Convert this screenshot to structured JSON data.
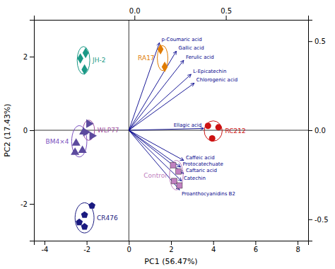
{
  "chart_data": {
    "type": "scatter",
    "xlabel": "PC1 (56.47%)",
    "ylabel": "PC2 (17.43%)",
    "xlim": [
      -4.5,
      8.5
    ],
    "ylim": [
      -3.0,
      3.0
    ],
    "xticks": [
      -4,
      -2,
      0,
      2,
      4,
      6,
      8
    ],
    "yticks": [
      -2,
      0,
      2
    ],
    "x2lim": [
      -0.55,
      0.95
    ],
    "x2ticks": [
      {
        "value": 0.0,
        "label": "0.0"
      },
      0.5
    ],
    "y2lim": [
      -0.62,
      0.62
    ],
    "y2ticks": [
      -0.5,
      {
        "value": 0.0,
        "label": "0.0"
      },
      0.5
    ],
    "series": [
      {
        "name": "JH-2",
        "marker": "diamond",
        "color": "#1a9986",
        "x": [
          -2.05,
          -2.3,
          -2.1
        ],
        "values": [
          2.1,
          1.95,
          1.65
        ],
        "ellipse": {
          "x": -2.15,
          "y": 1.9,
          "width": 0.6,
          "height": 0.75,
          "color": "#1a9986"
        }
      },
      {
        "name": "RA17",
        "marker": "diamond",
        "color": "#e07b00",
        "x": [
          1.5,
          1.7
        ],
        "values": [
          2.2,
          1.72
        ],
        "ellipse": {
          "x": 1.6,
          "y": 1.96,
          "width": 0.5,
          "height": 0.68,
          "color": "#e07b00"
        }
      },
      {
        "name": "WLP77",
        "marker": "triangle-right",
        "color": "#5c4a9e",
        "x": [
          -1.9,
          -2.05,
          -1.75
        ],
        "values": [
          0.18,
          -0.05,
          -0.15
        ],
        "ellipse": {
          "x": -1.9,
          "y": 0.0,
          "width": 0.55,
          "height": 0.55,
          "color": "#a050a0"
        }
      },
      {
        "name": "BM4×4",
        "marker": "triangle-up",
        "color": "#5c4a9e",
        "x": [
          -2.15,
          -2.5,
          -2.2,
          -2.55
        ],
        "values": [
          -0.05,
          -0.35,
          -0.55,
          -0.6
        ],
        "ellipse": {
          "x": -2.35,
          "y": -0.3,
          "width": 0.72,
          "height": 0.85,
          "color": "#7a50c0"
        }
      },
      {
        "name": "CR476",
        "marker": "pentagon",
        "color": "#1a1a80",
        "x": [
          -1.75,
          -2.1,
          -2.35,
          -2.1
        ],
        "values": [
          -2.05,
          -2.3,
          -2.5,
          -2.62
        ],
        "ellipse": {
          "x": -2.1,
          "y": -2.38,
          "width": 0.9,
          "height": 0.82,
          "color": "#1a1a80"
        }
      },
      {
        "name": "RC212",
        "marker": "circle",
        "color": "#cc1111",
        "x": [
          3.75,
          4.25,
          3.95
        ],
        "values": [
          0.12,
          0.08,
          -0.22
        ],
        "ellipse": {
          "x": 4.0,
          "y": -0.02,
          "width": 0.85,
          "height": 0.55,
          "color": "#cc1111"
        }
      },
      {
        "name": "Control",
        "marker": "square",
        "color": "#c080c0",
        "x": [
          2.1,
          2.35,
          2.15,
          2.4
        ],
        "values": [
          -0.95,
          -1.12,
          -1.38,
          -1.5
        ],
        "ellipse": {
          "x": 2.25,
          "y": -1.22,
          "width": 0.65,
          "height": 0.8,
          "color": "#c080c0"
        }
      }
    ],
    "arrows": {
      "color": "#00008b",
      "names": [
        "p-Coumaric acid",
        "Gallic acid",
        "Ferulic acid",
        "L-Epicatechin",
        "Chlorogenic acid",
        "Ellagic acid",
        "Caffeic acid",
        "Protocatechuate",
        "Caftaric acid",
        "Catechin",
        "Proanthocyanidins B2"
      ],
      "x": [
        1.45,
        2.25,
        2.6,
        2.95,
        3.1,
        3.55,
        2.6,
        2.45,
        2.6,
        2.5,
        2.4
      ],
      "y": [
        2.38,
        2.15,
        1.9,
        1.52,
        1.28,
        0.05,
        -0.82,
        -1.0,
        -1.18,
        -1.38,
        -1.62
      ]
    }
  }
}
